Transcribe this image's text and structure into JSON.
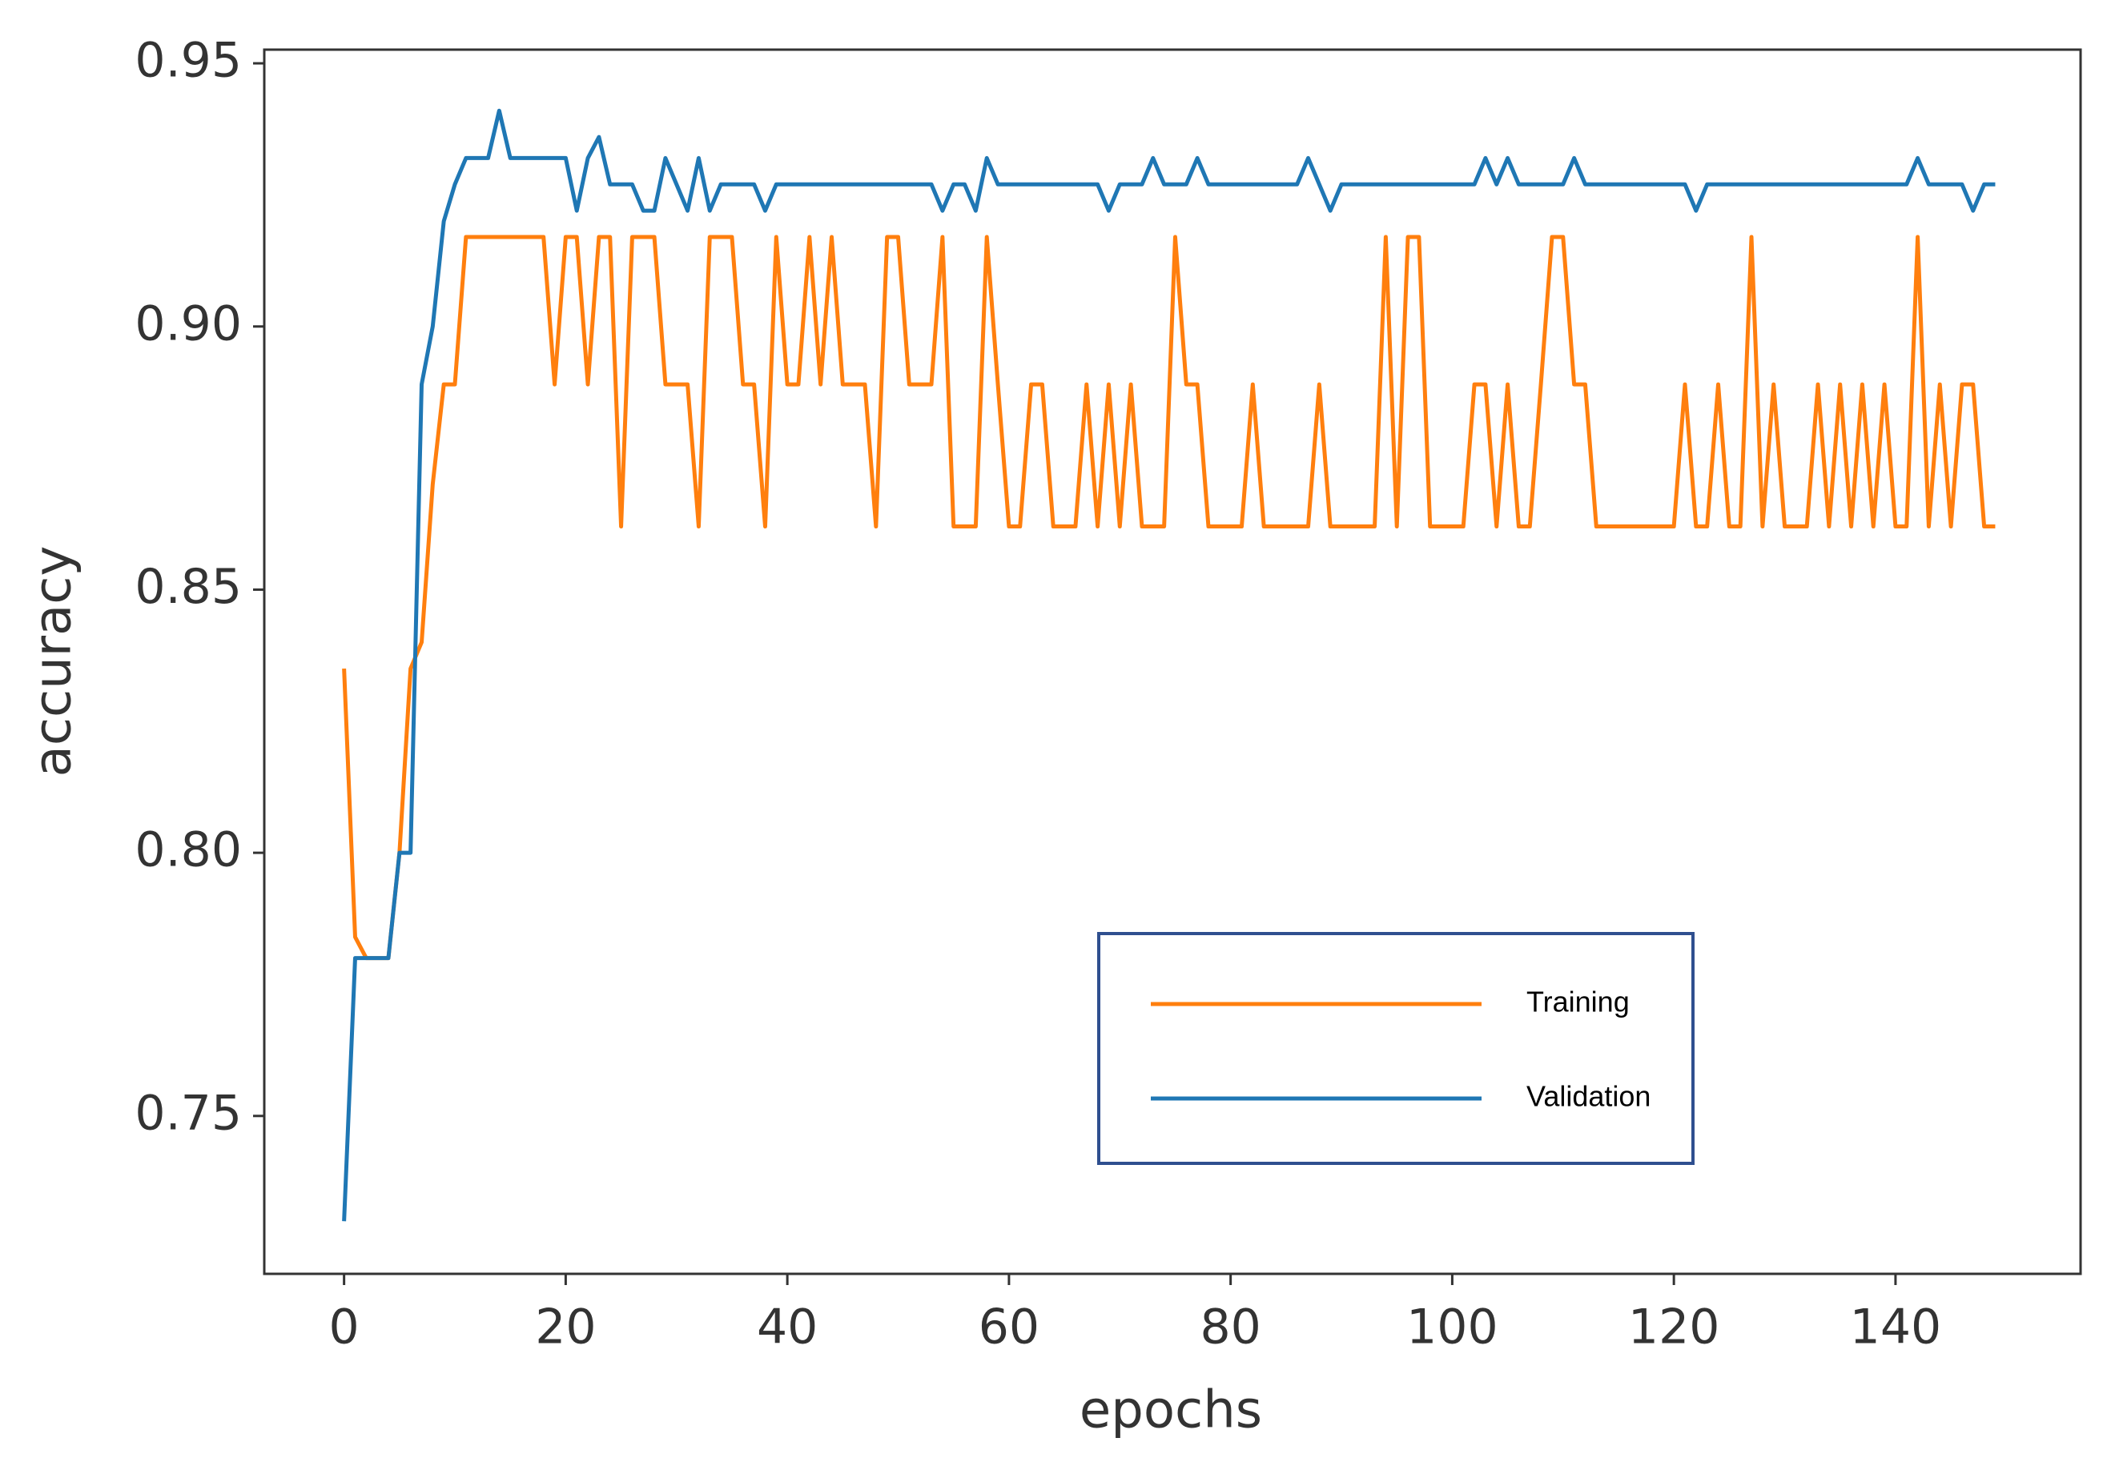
{
  "chart_data": {
    "type": "line",
    "x_label": "epochs",
    "y_label": "accuracy",
    "x": [
      0,
      1,
      2,
      3,
      4,
      5,
      6,
      7,
      8,
      9,
      10,
      11,
      12,
      13,
      14,
      15,
      16,
      17,
      18,
      19,
      20,
      21,
      22,
      23,
      24,
      25,
      26,
      27,
      28,
      29,
      30,
      31,
      32,
      33,
      34,
      35,
      36,
      37,
      38,
      39,
      40,
      41,
      42,
      43,
      44,
      45,
      46,
      47,
      48,
      49,
      50,
      51,
      52,
      53,
      54,
      55,
      56,
      57,
      58,
      59,
      60,
      61,
      62,
      63,
      64,
      65,
      66,
      67,
      68,
      69,
      70,
      71,
      72,
      73,
      74,
      75,
      76,
      77,
      78,
      79,
      80,
      81,
      82,
      83,
      84,
      85,
      86,
      87,
      88,
      89,
      90,
      91,
      92,
      93,
      94,
      95,
      96,
      97,
      98,
      99,
      100,
      101,
      102,
      103,
      104,
      105,
      106,
      107,
      108,
      109,
      110,
      111,
      112,
      113,
      114,
      115,
      116,
      117,
      118,
      119,
      120,
      121,
      122,
      123,
      124,
      125,
      126,
      127,
      128,
      129,
      130,
      131,
      132,
      133,
      134,
      135,
      136,
      137,
      138,
      139,
      140,
      141,
      142,
      143,
      144,
      145,
      146,
      147,
      148,
      149
    ],
    "series": [
      {
        "name": "Training",
        "color": "#ff7f0e",
        "values": [
          0.835,
          0.784,
          0.78,
          0.78,
          0.78,
          0.8,
          0.835,
          0.84,
          0.87,
          0.889,
          0.889,
          0.917,
          0.917,
          0.917,
          0.917,
          0.917,
          0.917,
          0.917,
          0.917,
          0.889,
          0.917,
          0.917,
          0.889,
          0.917,
          0.917,
          0.862,
          0.917,
          0.917,
          0.917,
          0.889,
          0.889,
          0.889,
          0.862,
          0.917,
          0.917,
          0.917,
          0.889,
          0.889,
          0.862,
          0.917,
          0.889,
          0.889,
          0.917,
          0.889,
          0.917,
          0.889,
          0.889,
          0.889,
          0.862,
          0.917,
          0.917,
          0.889,
          0.889,
          0.889,
          0.917,
          0.862,
          0.862,
          0.862,
          0.917,
          0.889,
          0.862,
          0.862,
          0.889,
          0.889,
          0.862,
          0.862,
          0.862,
          0.889,
          0.862,
          0.889,
          0.862,
          0.889,
          0.862,
          0.862,
          0.862,
          0.917,
          0.889,
          0.889,
          0.862,
          0.862,
          0.862,
          0.862,
          0.889,
          0.862,
          0.862,
          0.862,
          0.862,
          0.862,
          0.889,
          0.862,
          0.862,
          0.862,
          0.862,
          0.862,
          0.917,
          0.862,
          0.917,
          0.917,
          0.862,
          0.862,
          0.862,
          0.862,
          0.889,
          0.889,
          0.862,
          0.889,
          0.862,
          0.862,
          0.889,
          0.917,
          0.917,
          0.889,
          0.889,
          0.862,
          0.862,
          0.862,
          0.862,
          0.862,
          0.862,
          0.862,
          0.862,
          0.889,
          0.862,
          0.862,
          0.889,
          0.862,
          0.862,
          0.917,
          0.862,
          0.889,
          0.862,
          0.862,
          0.862,
          0.889,
          0.862,
          0.889,
          0.862,
          0.889,
          0.862,
          0.889,
          0.862,
          0.862,
          0.917,
          0.862,
          0.889,
          0.862,
          0.889,
          0.889,
          0.862,
          0.862
        ]
      },
      {
        "name": "Validation",
        "color": "#1f77b4",
        "values": [
          0.73,
          0.78,
          0.78,
          0.78,
          0.78,
          0.8,
          0.8,
          0.889,
          0.9,
          0.92,
          0.927,
          0.932,
          0.932,
          0.932,
          0.941,
          0.932,
          0.932,
          0.932,
          0.932,
          0.932,
          0.932,
          0.922,
          0.932,
          0.936,
          0.927,
          0.927,
          0.927,
          0.922,
          0.922,
          0.932,
          0.927,
          0.922,
          0.932,
          0.922,
          0.927,
          0.927,
          0.927,
          0.927,
          0.922,
          0.927,
          0.927,
          0.927,
          0.927,
          0.927,
          0.927,
          0.927,
          0.927,
          0.927,
          0.927,
          0.927,
          0.927,
          0.927,
          0.927,
          0.927,
          0.922,
          0.927,
          0.927,
          0.922,
          0.932,
          0.927,
          0.927,
          0.927,
          0.927,
          0.927,
          0.927,
          0.927,
          0.927,
          0.927,
          0.927,
          0.922,
          0.927,
          0.927,
          0.927,
          0.932,
          0.927,
          0.927,
          0.927,
          0.932,
          0.927,
          0.927,
          0.927,
          0.927,
          0.927,
          0.927,
          0.927,
          0.927,
          0.927,
          0.932,
          0.927,
          0.922,
          0.927,
          0.927,
          0.927,
          0.927,
          0.927,
          0.927,
          0.927,
          0.927,
          0.927,
          0.927,
          0.927,
          0.927,
          0.927,
          0.932,
          0.927,
          0.932,
          0.927,
          0.927,
          0.927,
          0.927,
          0.927,
          0.932,
          0.927,
          0.927,
          0.927,
          0.927,
          0.927,
          0.927,
          0.927,
          0.927,
          0.927,
          0.927,
          0.922,
          0.927,
          0.927,
          0.927,
          0.927,
          0.927,
          0.927,
          0.927,
          0.927,
          0.927,
          0.927,
          0.927,
          0.927,
          0.927,
          0.927,
          0.927,
          0.927,
          0.927,
          0.927,
          0.927,
          0.932,
          0.927,
          0.927,
          0.927,
          0.927,
          0.922,
          0.927,
          0.927
        ]
      }
    ],
    "xlim": [
      -7.2,
      156.7
    ],
    "xticks": [
      0,
      20,
      40,
      60,
      80,
      100,
      120,
      140
    ],
    "ylim": [
      0.72,
      0.9526
    ],
    "yticks": [
      0.75,
      {
        "value": 0.8,
        "label": "0.80"
      },
      0.85,
      {
        "value": 0.9,
        "label": "0.90"
      },
      0.95
    ],
    "grid": false
  }
}
